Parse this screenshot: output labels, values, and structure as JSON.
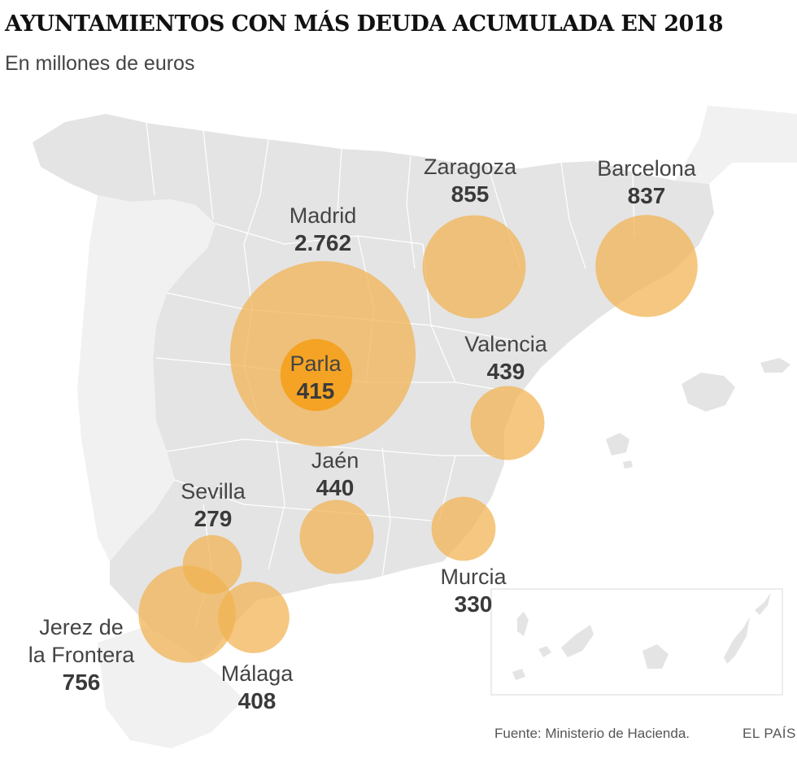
{
  "header": {
    "title": "AYUNTAMIENTOS CON MÁS DEUDA ACUMULADA EN 2018",
    "subtitle": "En millones de euros"
  },
  "colors": {
    "land": "#e4e4e4",
    "borders": "#ffffff",
    "bubble": "#f1b14f",
    "bubble_highlight": "#f4a120"
  },
  "cities": [
    {
      "name": "Madrid",
      "value_label": "2.762",
      "value": 2762
    },
    {
      "name": "Barcelona",
      "value_label": "837",
      "value": 837
    },
    {
      "name": "Zaragoza",
      "value_label": "855",
      "value": 855
    },
    {
      "name": "Valencia",
      "value_label": "439",
      "value": 439
    },
    {
      "name": "Jaén",
      "value_label": "440",
      "value": 440
    },
    {
      "name": "Murcia",
      "value_label": "330",
      "value": 330
    },
    {
      "name": "Sevilla",
      "value_label": "279",
      "value": 279
    },
    {
      "name": "Jerez de",
      "name_line2": "la Frontera",
      "value_label": "756",
      "value": 756
    },
    {
      "name": "Málaga",
      "value_label": "408",
      "value": 408
    },
    {
      "name": "Parla",
      "value_label": "415",
      "value": 415,
      "highlight": true
    }
  ],
  "footer": {
    "source": "Fuente: Ministerio de Hacienda.",
    "brand": "EL PAÍS"
  }
}
